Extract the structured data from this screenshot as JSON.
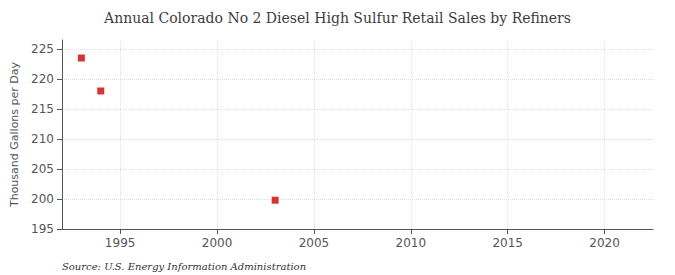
{
  "chart_data": {
    "type": "scatter",
    "title": "Annual Colorado No 2 Diesel High Sulfur Retail Sales by Refiners",
    "ylabel": "Thousand Gallons per Day",
    "annotation": "Source: U.S. Energy Information Administration",
    "x": [
      1993,
      1994,
      2003
    ],
    "values": [
      223.5,
      218.0,
      199.8
    ],
    "color": "#cc0000",
    "marker": "square",
    "xlim": [
      1992,
      2022.5
    ],
    "ylim": [
      195,
      226.5
    ],
    "xticks": [
      1995,
      2000,
      2005,
      2010,
      2015,
      2020
    ],
    "yticks": [
      195,
      200,
      205,
      210,
      215,
      220,
      225
    ],
    "grid": true
  }
}
